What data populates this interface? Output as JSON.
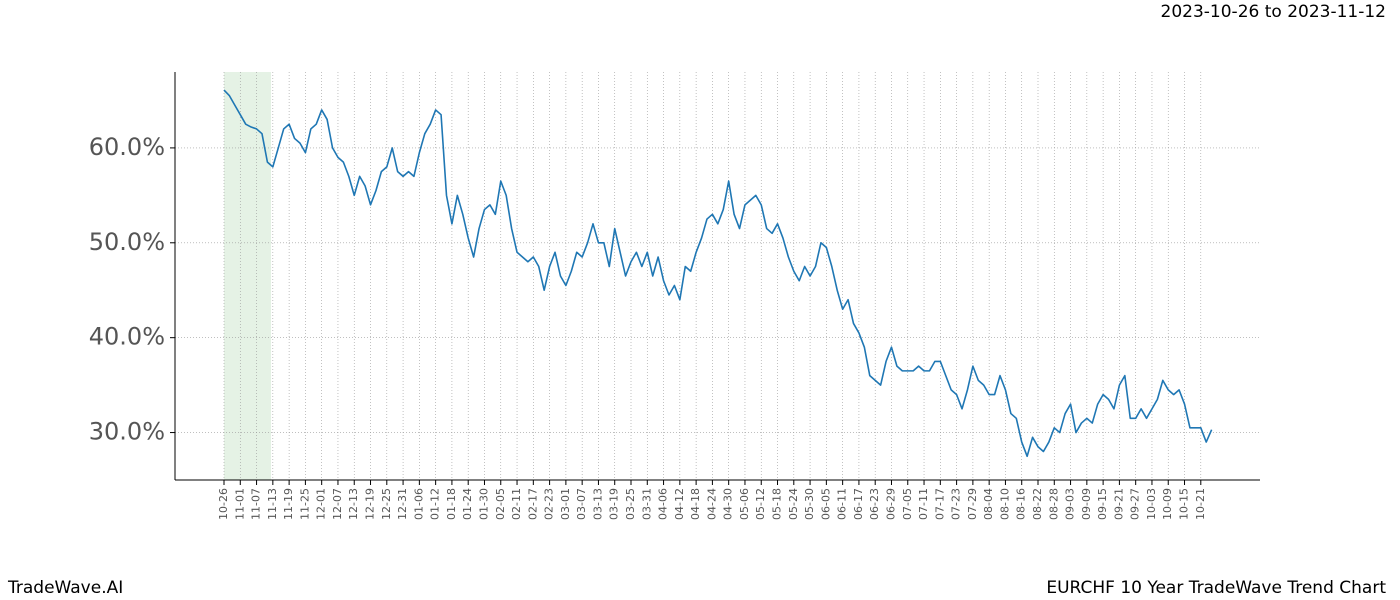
{
  "chart_data": {
    "type": "line",
    "title": "EURCHF 10 Year TradeWave Trend Chart",
    "subtitle": "2023-10-26 to 2023-11-12",
    "source": "TradeWave.AI",
    "color": "#1f77b4",
    "grid": true,
    "ylim": [
      25,
      68
    ],
    "yticks": [
      {
        "value": 30,
        "label": "30.0%"
      },
      {
        "value": 40,
        "label": "40.0%"
      },
      {
        "value": 50,
        "label": "50.0%"
      },
      {
        "value": 60,
        "label": "60.0%"
      }
    ],
    "categories": [
      "10-26",
      null,
      null,
      "11-01",
      null,
      null,
      "11-07",
      null,
      null,
      "11-13",
      null,
      null,
      "11-19",
      null,
      null,
      "11-25",
      null,
      null,
      "12-01",
      null,
      null,
      "12-07",
      null,
      null,
      "12-13",
      null,
      null,
      "12-19",
      null,
      null,
      "12-25",
      null,
      null,
      "12-31",
      null,
      null,
      "01-06",
      null,
      null,
      "01-12",
      null,
      null,
      "01-18",
      null,
      null,
      "01-24",
      null,
      null,
      "01-30",
      null,
      null,
      "02-05",
      null,
      null,
      "02-11",
      null,
      null,
      "02-17",
      null,
      null,
      "02-23",
      null,
      null,
      "03-01",
      null,
      null,
      "03-07",
      null,
      null,
      "03-13",
      null,
      null,
      "03-19",
      null,
      null,
      "03-25",
      null,
      null,
      "03-31",
      null,
      null,
      "04-06",
      null,
      null,
      "04-12",
      null,
      null,
      "04-18",
      null,
      null,
      "04-24",
      null,
      null,
      "04-30",
      null,
      null,
      "05-06",
      null,
      null,
      "05-12",
      null,
      null,
      "05-18",
      null,
      null,
      "05-24",
      null,
      null,
      "05-30",
      null,
      null,
      "06-05",
      null,
      null,
      "06-11",
      null,
      null,
      "06-17",
      null,
      null,
      "06-23",
      null,
      null,
      "06-29",
      null,
      null,
      "07-05",
      null,
      null,
      "07-11",
      null,
      null,
      "07-17",
      null,
      null,
      "07-23",
      null,
      null,
      "07-29",
      null,
      null,
      "08-04",
      null,
      null,
      "08-10",
      null,
      null,
      "08-16",
      null,
      null,
      "08-22",
      null,
      null,
      "08-28",
      null,
      null,
      "09-03",
      null,
      null,
      "09-09",
      null,
      null,
      "09-15",
      null,
      null,
      "09-21",
      null,
      null,
      "09-27",
      null,
      null,
      "10-03",
      null,
      null,
      "10-09",
      null,
      null,
      "10-15",
      null,
      null,
      "10-21",
      null,
      null
    ],
    "values": [
      66.1,
      65.5,
      64.5,
      63.5,
      62.5,
      62.2,
      62.0,
      61.5,
      58.5,
      58.0,
      60.0,
      62.0,
      62.5,
      61.0,
      60.5,
      59.5,
      62.0,
      62.5,
      64.0,
      63.0,
      60.0,
      59.0,
      58.5,
      57.0,
      55.0,
      57.0,
      56.0,
      54.0,
      55.5,
      57.5,
      58.0,
      60.0,
      57.5,
      57.0,
      57.5,
      57.0,
      59.5,
      61.5,
      62.5,
      64.0,
      63.5,
      55.0,
      52.0,
      55.0,
      53.0,
      50.5,
      48.5,
      51.5,
      53.5,
      54.0,
      53.0,
      56.5,
      55.0,
      51.5,
      49.0,
      48.5,
      48.0,
      48.5,
      47.5,
      45.0,
      47.5,
      49.0,
      46.5,
      45.5,
      47.0,
      49.0,
      48.5,
      50.0,
      52.0,
      50.0,
      50.0,
      47.5,
      51.5,
      49.0,
      46.5,
      48.0,
      49.0,
      47.5,
      49.0,
      46.5,
      48.5,
      46.0,
      44.5,
      45.5,
      44.0,
      47.5,
      47.0,
      49.0,
      50.5,
      52.5,
      53.0,
      52.0,
      53.5,
      56.5,
      53.0,
      51.5,
      54.0,
      54.5,
      55.0,
      54.0,
      51.5,
      51.0,
      52.0,
      50.5,
      48.5,
      47.0,
      46.0,
      47.5,
      46.5,
      47.5,
      50.0,
      49.5,
      47.5,
      45.0,
      43.0,
      44.0,
      41.5,
      40.5,
      39.0,
      36.0,
      35.5,
      35.0,
      37.5,
      39.0,
      37.0,
      36.5,
      36.5,
      36.5,
      37.0,
      36.5,
      36.5,
      37.5,
      37.5,
      36.0,
      34.5,
      34.0,
      32.5,
      34.5,
      37.0,
      35.5,
      35.0,
      34.0,
      34.0,
      36.0,
      34.5,
      32.0,
      31.5,
      29.0,
      27.5,
      29.5,
      28.5,
      28.0,
      29.0,
      30.5,
      30.0,
      32.0,
      33.0,
      30.0,
      31.0,
      31.5,
      31.0,
      33.0,
      34.0,
      33.5,
      32.5,
      35.0,
      36.0,
      31.5,
      31.5,
      32.5,
      31.5,
      32.5,
      33.5,
      35.5,
      34.5,
      34.0,
      34.5,
      33.0,
      30.5,
      30.5,
      30.5,
      29.0,
      30.3
    ]
  }
}
